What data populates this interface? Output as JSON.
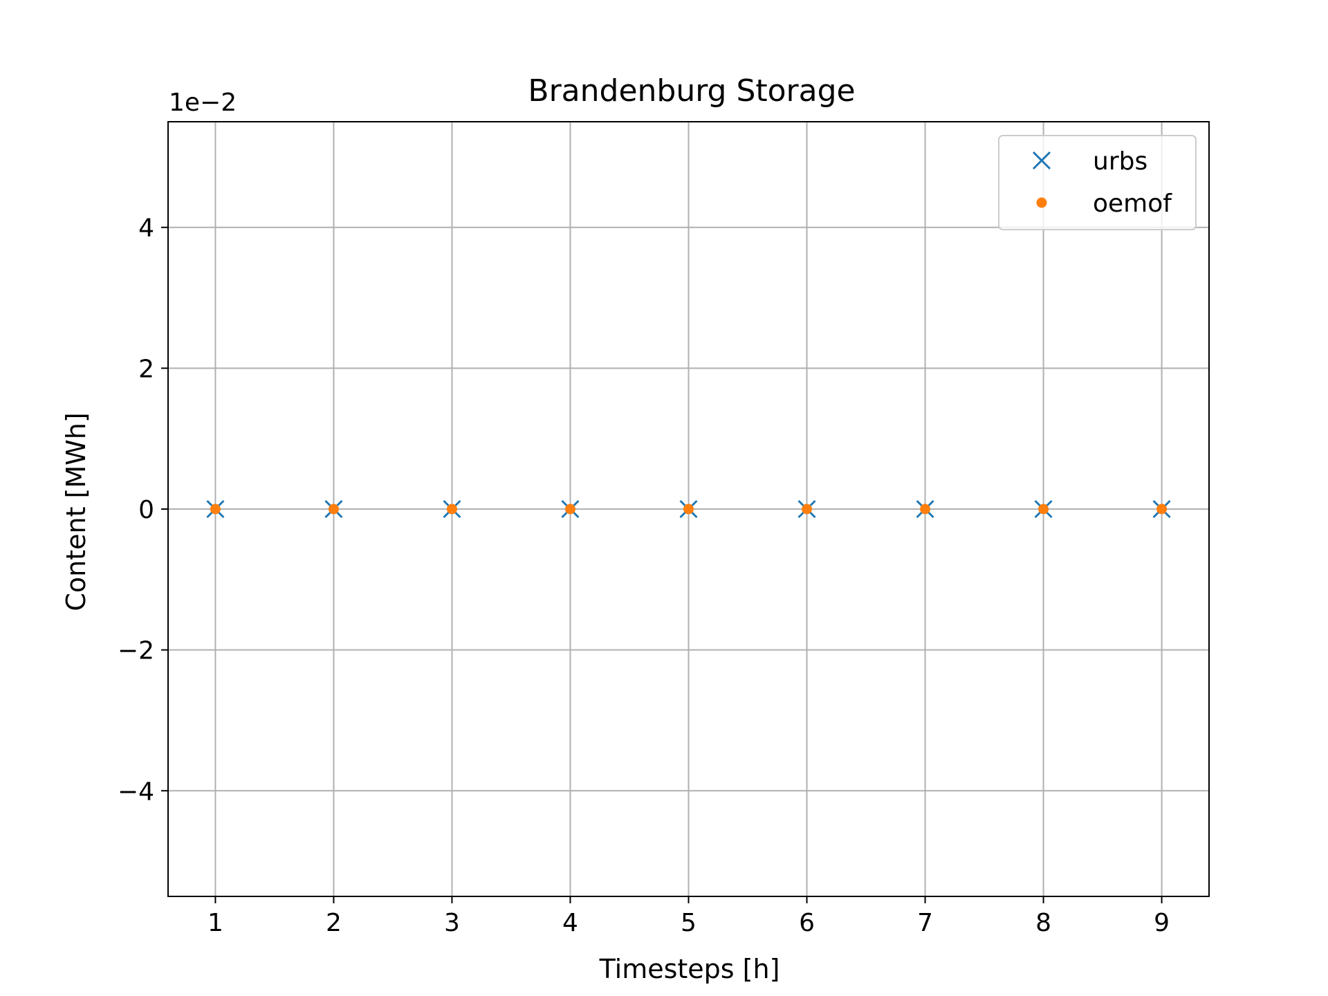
{
  "chart_data": {
    "type": "scatter",
    "title": "Brandenburg Storage",
    "xlabel": "Timesteps [h]",
    "ylabel": "Content [MWh]",
    "y_offset_label": "1e−2",
    "x": [
      1,
      2,
      3,
      4,
      5,
      6,
      7,
      8,
      9
    ],
    "xlim": [
      0.6,
      9.4
    ],
    "ylim": [
      -0.055,
      0.055
    ],
    "x_ticks": [
      1,
      2,
      3,
      4,
      5,
      6,
      7,
      8,
      9
    ],
    "x_tick_labels": [
      "1",
      "2",
      "3",
      "4",
      "5",
      "6",
      "7",
      "8",
      "9"
    ],
    "y_ticks": [
      -0.04,
      -0.02,
      0,
      0.02,
      0.04
    ],
    "y_tick_labels": [
      "−4",
      "−2",
      "0",
      "2",
      "4"
    ],
    "grid": true,
    "legend_position": "top-right",
    "series": [
      {
        "name": "urbs",
        "marker": "x",
        "color": "#1f77b4",
        "values": [
          0,
          0,
          0,
          0,
          0,
          0,
          0,
          0,
          0
        ]
      },
      {
        "name": "oemof",
        "marker": "dot",
        "color": "#ff7f0e",
        "values": [
          0,
          0,
          0,
          0,
          0,
          0,
          0,
          0,
          0
        ]
      }
    ]
  }
}
